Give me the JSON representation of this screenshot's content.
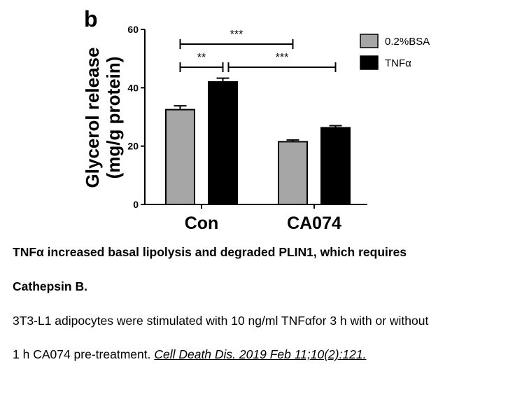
{
  "panel_label": "b",
  "chart_data": {
    "type": "bar",
    "categories": [
      "Con",
      "CA074"
    ],
    "series": [
      {
        "name": "0.2%BSA",
        "color": "#a6a6a6",
        "values": [
          32.5,
          21.5
        ],
        "errors": [
          1.3,
          0.6
        ]
      },
      {
        "name": "TNFα",
        "color": "#000000",
        "values": [
          42,
          26.3
        ],
        "errors": [
          1.3,
          0.7
        ]
      }
    ],
    "ylabel_line1": "Glycerol release",
    "ylabel_line2": "(mg/g protein)",
    "ylim": [
      0,
      60
    ],
    "yticks": [
      0,
      20,
      40,
      60
    ],
    "legend_position": "top-right",
    "annotations": [
      {
        "label": "***",
        "from": {
          "category": 0,
          "series": 0
        },
        "to": {
          "category": 1,
          "series": 0
        }
      },
      {
        "label": "**",
        "from": {
          "category": 0,
          "series": 0
        },
        "to": {
          "category": 0,
          "series": 1
        }
      },
      {
        "label": "***",
        "from": {
          "category": 0,
          "series": 1
        },
        "to": {
          "category": 1,
          "series": 1
        }
      }
    ]
  },
  "caption": {
    "title_line1": "TNFα increased basal lipolysis and degraded PLIN1, which requires",
    "title_line2": "Cathepsin B.",
    "desc_line1": "3T3-L1 adipocytes were stimulated with 10 ng/ml TNFαfor 3 h with or without",
    "desc_line2_prefix": "1 h CA074 pre-treatment. ",
    "citation": "Cell Death Dis. 2019 Feb 11;10(2):121. "
  }
}
